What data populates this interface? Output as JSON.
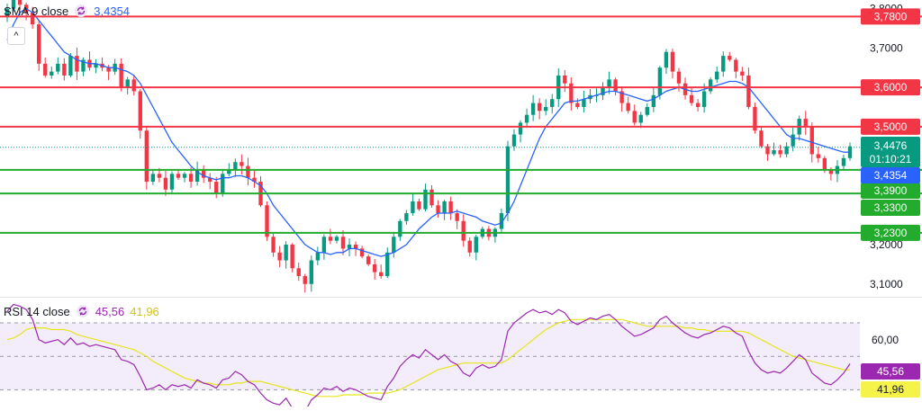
{
  "colors": {
    "up": "#089981",
    "down": "#f23645",
    "sma": "#2962ff",
    "resistance": "#f23645",
    "support": "#22ab2c",
    "rsi": "#9c27b0",
    "rsi_ma": "#e6e61a",
    "rsi_band": "#f3ecfb",
    "last_price": "#089981",
    "sma_tag": "#2962ff"
  },
  "legend": {
    "sma_label": "SMA 9 close",
    "sma_value": "3,4354",
    "rsi_label": "RSI 14 close",
    "rsi_value": "45,56",
    "rsi_ma_value": "41,96"
  },
  "chart_data": [
    {
      "type": "candlestick",
      "axis_ticks": [
        "3,8000",
        "3,7000",
        "3,6000",
        "3,5000",
        "3,4000",
        "3,3000",
        "3,2000",
        "3,1000"
      ],
      "axis_tick_values": [
        3.8,
        3.7,
        3.6,
        3.5,
        3.4,
        3.3,
        3.2,
        3.1
      ],
      "ylim": [
        3.072,
        3.822
      ],
      "levels": [
        {
          "value": 3.78,
          "label": "3,7800",
          "kind": "resistance"
        },
        {
          "value": 3.6,
          "label": "3,6000",
          "kind": "resistance"
        },
        {
          "value": 3.5,
          "label": "3,5000",
          "kind": "resistance"
        },
        {
          "value": 3.39,
          "label": "3,3900",
          "kind": "support"
        },
        {
          "value": 3.33,
          "label": "3,3300",
          "kind": "support"
        },
        {
          "value": 3.23,
          "label": "3,2300",
          "kind": "support"
        }
      ],
      "last_price": {
        "value": 3.4476,
        "label": "3,4476",
        "countdown": "01:10:21"
      },
      "sma_last": {
        "value": 3.4354,
        "label": "3,4354"
      },
      "closes": [
        3.8,
        3.84,
        3.81,
        3.79,
        3.76,
        3.66,
        3.63,
        3.64,
        3.66,
        3.63,
        3.68,
        3.64,
        3.67,
        3.65,
        3.66,
        3.65,
        3.64,
        3.66,
        3.6,
        3.62,
        3.59,
        3.49,
        3.36,
        3.38,
        3.37,
        3.34,
        3.38,
        3.37,
        3.38,
        3.36,
        3.39,
        3.37,
        3.36,
        3.33,
        3.38,
        3.39,
        3.41,
        3.4,
        3.37,
        3.36,
        3.3,
        3.22,
        3.18,
        3.16,
        3.2,
        3.14,
        3.12,
        3.1,
        3.16,
        3.18,
        3.22,
        3.21,
        3.22,
        3.19,
        3.2,
        3.19,
        3.17,
        3.15,
        3.13,
        3.12,
        3.18,
        3.22,
        3.26,
        3.28,
        3.31,
        3.29,
        3.34,
        3.3,
        3.28,
        3.31,
        3.28,
        3.26,
        3.21,
        3.18,
        3.22,
        3.24,
        3.22,
        3.24,
        3.28,
        3.45,
        3.48,
        3.51,
        3.53,
        3.56,
        3.54,
        3.55,
        3.57,
        3.63,
        3.61,
        3.56,
        3.55,
        3.57,
        3.58,
        3.58,
        3.6,
        3.62,
        3.59,
        3.56,
        3.54,
        3.51,
        3.53,
        3.55,
        3.58,
        3.65,
        3.69,
        3.64,
        3.61,
        3.58,
        3.56,
        3.55,
        3.59,
        3.62,
        3.64,
        3.68,
        3.67,
        3.64,
        3.63,
        3.55,
        3.49,
        3.45,
        3.43,
        3.44,
        3.43,
        3.45,
        3.48,
        3.52,
        3.5,
        3.43,
        3.42,
        3.39,
        3.38,
        3.4,
        3.42,
        3.45
      ],
      "sma": [
        3.72,
        3.76,
        3.79,
        3.8,
        3.79,
        3.77,
        3.75,
        3.73,
        3.71,
        3.69,
        3.68,
        3.67,
        3.665,
        3.66,
        3.66,
        3.655,
        3.65,
        3.65,
        3.645,
        3.64,
        3.63,
        3.61,
        3.58,
        3.55,
        3.52,
        3.49,
        3.46,
        3.44,
        3.42,
        3.4,
        3.385,
        3.375,
        3.37,
        3.365,
        3.37,
        3.37,
        3.375,
        3.375,
        3.37,
        3.36,
        3.35,
        3.33,
        3.3,
        3.28,
        3.26,
        3.24,
        3.22,
        3.2,
        3.19,
        3.18,
        3.18,
        3.175,
        3.18,
        3.18,
        3.19,
        3.19,
        3.185,
        3.18,
        3.175,
        3.17,
        3.175,
        3.18,
        3.19,
        3.2,
        3.22,
        3.24,
        3.255,
        3.27,
        3.28,
        3.28,
        3.28,
        3.285,
        3.28,
        3.275,
        3.27,
        3.26,
        3.255,
        3.25,
        3.255,
        3.28,
        3.31,
        3.35,
        3.39,
        3.43,
        3.47,
        3.5,
        3.52,
        3.54,
        3.56,
        3.565,
        3.565,
        3.57,
        3.575,
        3.58,
        3.585,
        3.59,
        3.59,
        3.585,
        3.58,
        3.575,
        3.57,
        3.565,
        3.57,
        3.58,
        3.59,
        3.595,
        3.6,
        3.595,
        3.59,
        3.59,
        3.595,
        3.6,
        3.605,
        3.61,
        3.615,
        3.615,
        3.61,
        3.6,
        3.58,
        3.56,
        3.54,
        3.52,
        3.5,
        3.48,
        3.47,
        3.47,
        3.465,
        3.46,
        3.455,
        3.45,
        3.445,
        3.44,
        3.435,
        3.4354
      ]
    },
    {
      "type": "line",
      "name_label": "RSI",
      "axis_ticks": [
        "60,00"
      ],
      "levels": [
        70,
        50,
        30
      ],
      "band": [
        30,
        70
      ],
      "ylim": [
        20,
        84
      ],
      "rsi": [
        77,
        81,
        80,
        78,
        72,
        60,
        58,
        59,
        60,
        57,
        61,
        57,
        58,
        56,
        57,
        56,
        55,
        54,
        48,
        47,
        45,
        38,
        30,
        31,
        33,
        30,
        33,
        32,
        33,
        31,
        36,
        34,
        33,
        31,
        36,
        37,
        41,
        39,
        35,
        33,
        28,
        24,
        22,
        21,
        25,
        19,
        18,
        17,
        24,
        27,
        31,
        30,
        32,
        29,
        31,
        30,
        28,
        26,
        25,
        24,
        32,
        37,
        44,
        48,
        51,
        49,
        54,
        51,
        48,
        51,
        47,
        45,
        40,
        38,
        43,
        45,
        43,
        44,
        48,
        65,
        70,
        73,
        76,
        78,
        76,
        77,
        75,
        78,
        76,
        71,
        69,
        71,
        73,
        72,
        74,
        75,
        72,
        68,
        65,
        62,
        63,
        65,
        67,
        72,
        74,
        70,
        67,
        64,
        62,
        61,
        63,
        64,
        66,
        68,
        67,
        64,
        62,
        53,
        46,
        42,
        40,
        41,
        40,
        43,
        47,
        51,
        48,
        40,
        37,
        34,
        33,
        36,
        40,
        45.56
      ],
      "rsi_ma": [
        60,
        61,
        63,
        66,
        67,
        67,
        67,
        66,
        66,
        66,
        65,
        63,
        62,
        61,
        60,
        59,
        58,
        57,
        56,
        55,
        54,
        52,
        50,
        47,
        45,
        43,
        41,
        39,
        37,
        36,
        35,
        34,
        34,
        33,
        33,
        33,
        34,
        34,
        35,
        35,
        35,
        34,
        33,
        32,
        31,
        30,
        29,
        28,
        27,
        26,
        26,
        26,
        26,
        27,
        27,
        27,
        27,
        28,
        28,
        28,
        28,
        29,
        30,
        32,
        34,
        36,
        38,
        40,
        42,
        43,
        44,
        45,
        46,
        46,
        46,
        46,
        46,
        46,
        46,
        48,
        51,
        54,
        57,
        60,
        63,
        66,
        68,
        70,
        71,
        72,
        72,
        72,
        72,
        72,
        72,
        72,
        72,
        72,
        71,
        70,
        69,
        68,
        68,
        68,
        68,
        68,
        68,
        67,
        67,
        66,
        66,
        65,
        65,
        65,
        65,
        65,
        65,
        64,
        62,
        60,
        58,
        56,
        54,
        52,
        50,
        49,
        48,
        47,
        46,
        45,
        44,
        43,
        42,
        41.96
      ],
      "last_values": [
        {
          "label": "45,56",
          "value": 45.56
        },
        {
          "label": "41,96",
          "value": 41.96
        }
      ]
    }
  ]
}
